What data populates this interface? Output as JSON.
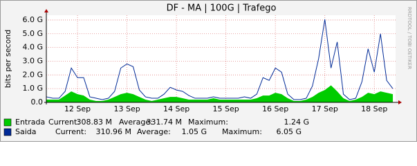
{
  "chart_data": {
    "type": "line",
    "title": "DF - MA | 100G | Trafego",
    "y_label": "bits per second",
    "watermark": "RRDTOOL / TOBI OETIKER",
    "xlim": [
      11.37,
      18.43
    ],
    "xticks": [
      {
        "value": 12,
        "label": "12 Sep"
      },
      {
        "value": 13,
        "label": "13 Sep"
      },
      {
        "value": 14,
        "label": "14 Sep"
      },
      {
        "value": 15,
        "label": "15 Sep"
      },
      {
        "value": 16,
        "label": "16 Sep"
      },
      {
        "value": 17,
        "label": "17 Sep"
      },
      {
        "value": 18,
        "label": "18 Sep"
      }
    ],
    "ylim": [
      0,
      6.35
    ],
    "yticks": [
      {
        "value": 0,
        "label": "0.0"
      },
      {
        "value": 1,
        "label": "1.0 G"
      },
      {
        "value": 2,
        "label": "2.0 G"
      },
      {
        "value": 3,
        "label": "3.0 G"
      },
      {
        "value": 4,
        "label": "4.0 G"
      },
      {
        "value": 5,
        "label": "5.0 G"
      },
      {
        "value": 6,
        "label": "6.0 G"
      }
    ],
    "grid": true,
    "x": [
      11.375,
      11.5,
      11.625,
      11.75,
      11.875,
      12,
      12.125,
      12.25,
      12.375,
      12.5,
      12.625,
      12.75,
      12.875,
      13,
      13.125,
      13.25,
      13.375,
      13.5,
      13.625,
      13.75,
      13.875,
      14,
      14.125,
      14.25,
      14.375,
      14.5,
      14.625,
      14.75,
      14.875,
      15,
      15.125,
      15.25,
      15.375,
      15.5,
      15.625,
      15.75,
      15.875,
      16,
      16.125,
      16.25,
      16.375,
      16.5,
      16.625,
      16.75,
      16.875,
      17,
      17.125,
      17.25,
      17.375,
      17.5,
      17.625,
      17.75,
      17.875,
      18,
      18.125,
      18.25,
      18.375
    ],
    "stat_labels": [
      "Current:",
      "Average:",
      "Maximum:"
    ],
    "series": [
      {
        "name": "Entrada",
        "color": "#00cc00",
        "style": "area",
        "values": [
          0.2,
          0.2,
          0.2,
          0.5,
          0.8,
          0.6,
          0.5,
          0.2,
          0.1,
          0.1,
          0.2,
          0.4,
          0.6,
          0.7,
          0.6,
          0.4,
          0.2,
          0.1,
          0.2,
          0.3,
          0.4,
          0.4,
          0.3,
          0.2,
          0.2,
          0.2,
          0.2,
          0.3,
          0.2,
          0.2,
          0.2,
          0.2,
          0.2,
          0.2,
          0.3,
          0.5,
          0.5,
          0.7,
          0.6,
          0.3,
          0.1,
          0.1,
          0.2,
          0.4,
          0.7,
          0.9,
          1.24,
          0.8,
          0.3,
          0.1,
          0.2,
          0.4,
          0.7,
          0.6,
          0.8,
          0.7,
          0.6
        ],
        "stats": [
          "308.83 M",
          "331.74 M",
          "1.24 G"
        ]
      },
      {
        "name": "Saida",
        "color": "#002a97",
        "style": "line",
        "values": [
          0.4,
          0.3,
          0.3,
          0.8,
          2.5,
          1.8,
          1.8,
          0.4,
          0.3,
          0.2,
          0.3,
          0.8,
          2.5,
          2.8,
          2.6,
          0.9,
          0.4,
          0.3,
          0.3,
          0.6,
          1.1,
          0.9,
          0.8,
          0.5,
          0.3,
          0.3,
          0.3,
          0.4,
          0.3,
          0.3,
          0.3,
          0.3,
          0.4,
          0.3,
          0.6,
          1.8,
          1.6,
          2.5,
          2.2,
          0.6,
          0.2,
          0.2,
          0.3,
          1.2,
          3.2,
          6.05,
          2.5,
          4.4,
          0.6,
          0.2,
          0.3,
          1.5,
          3.9,
          2.2,
          5.0,
          1.6,
          1.0
        ],
        "stats": [
          "310.96 M",
          "1.05 G",
          "6.05 G"
        ]
      }
    ]
  }
}
